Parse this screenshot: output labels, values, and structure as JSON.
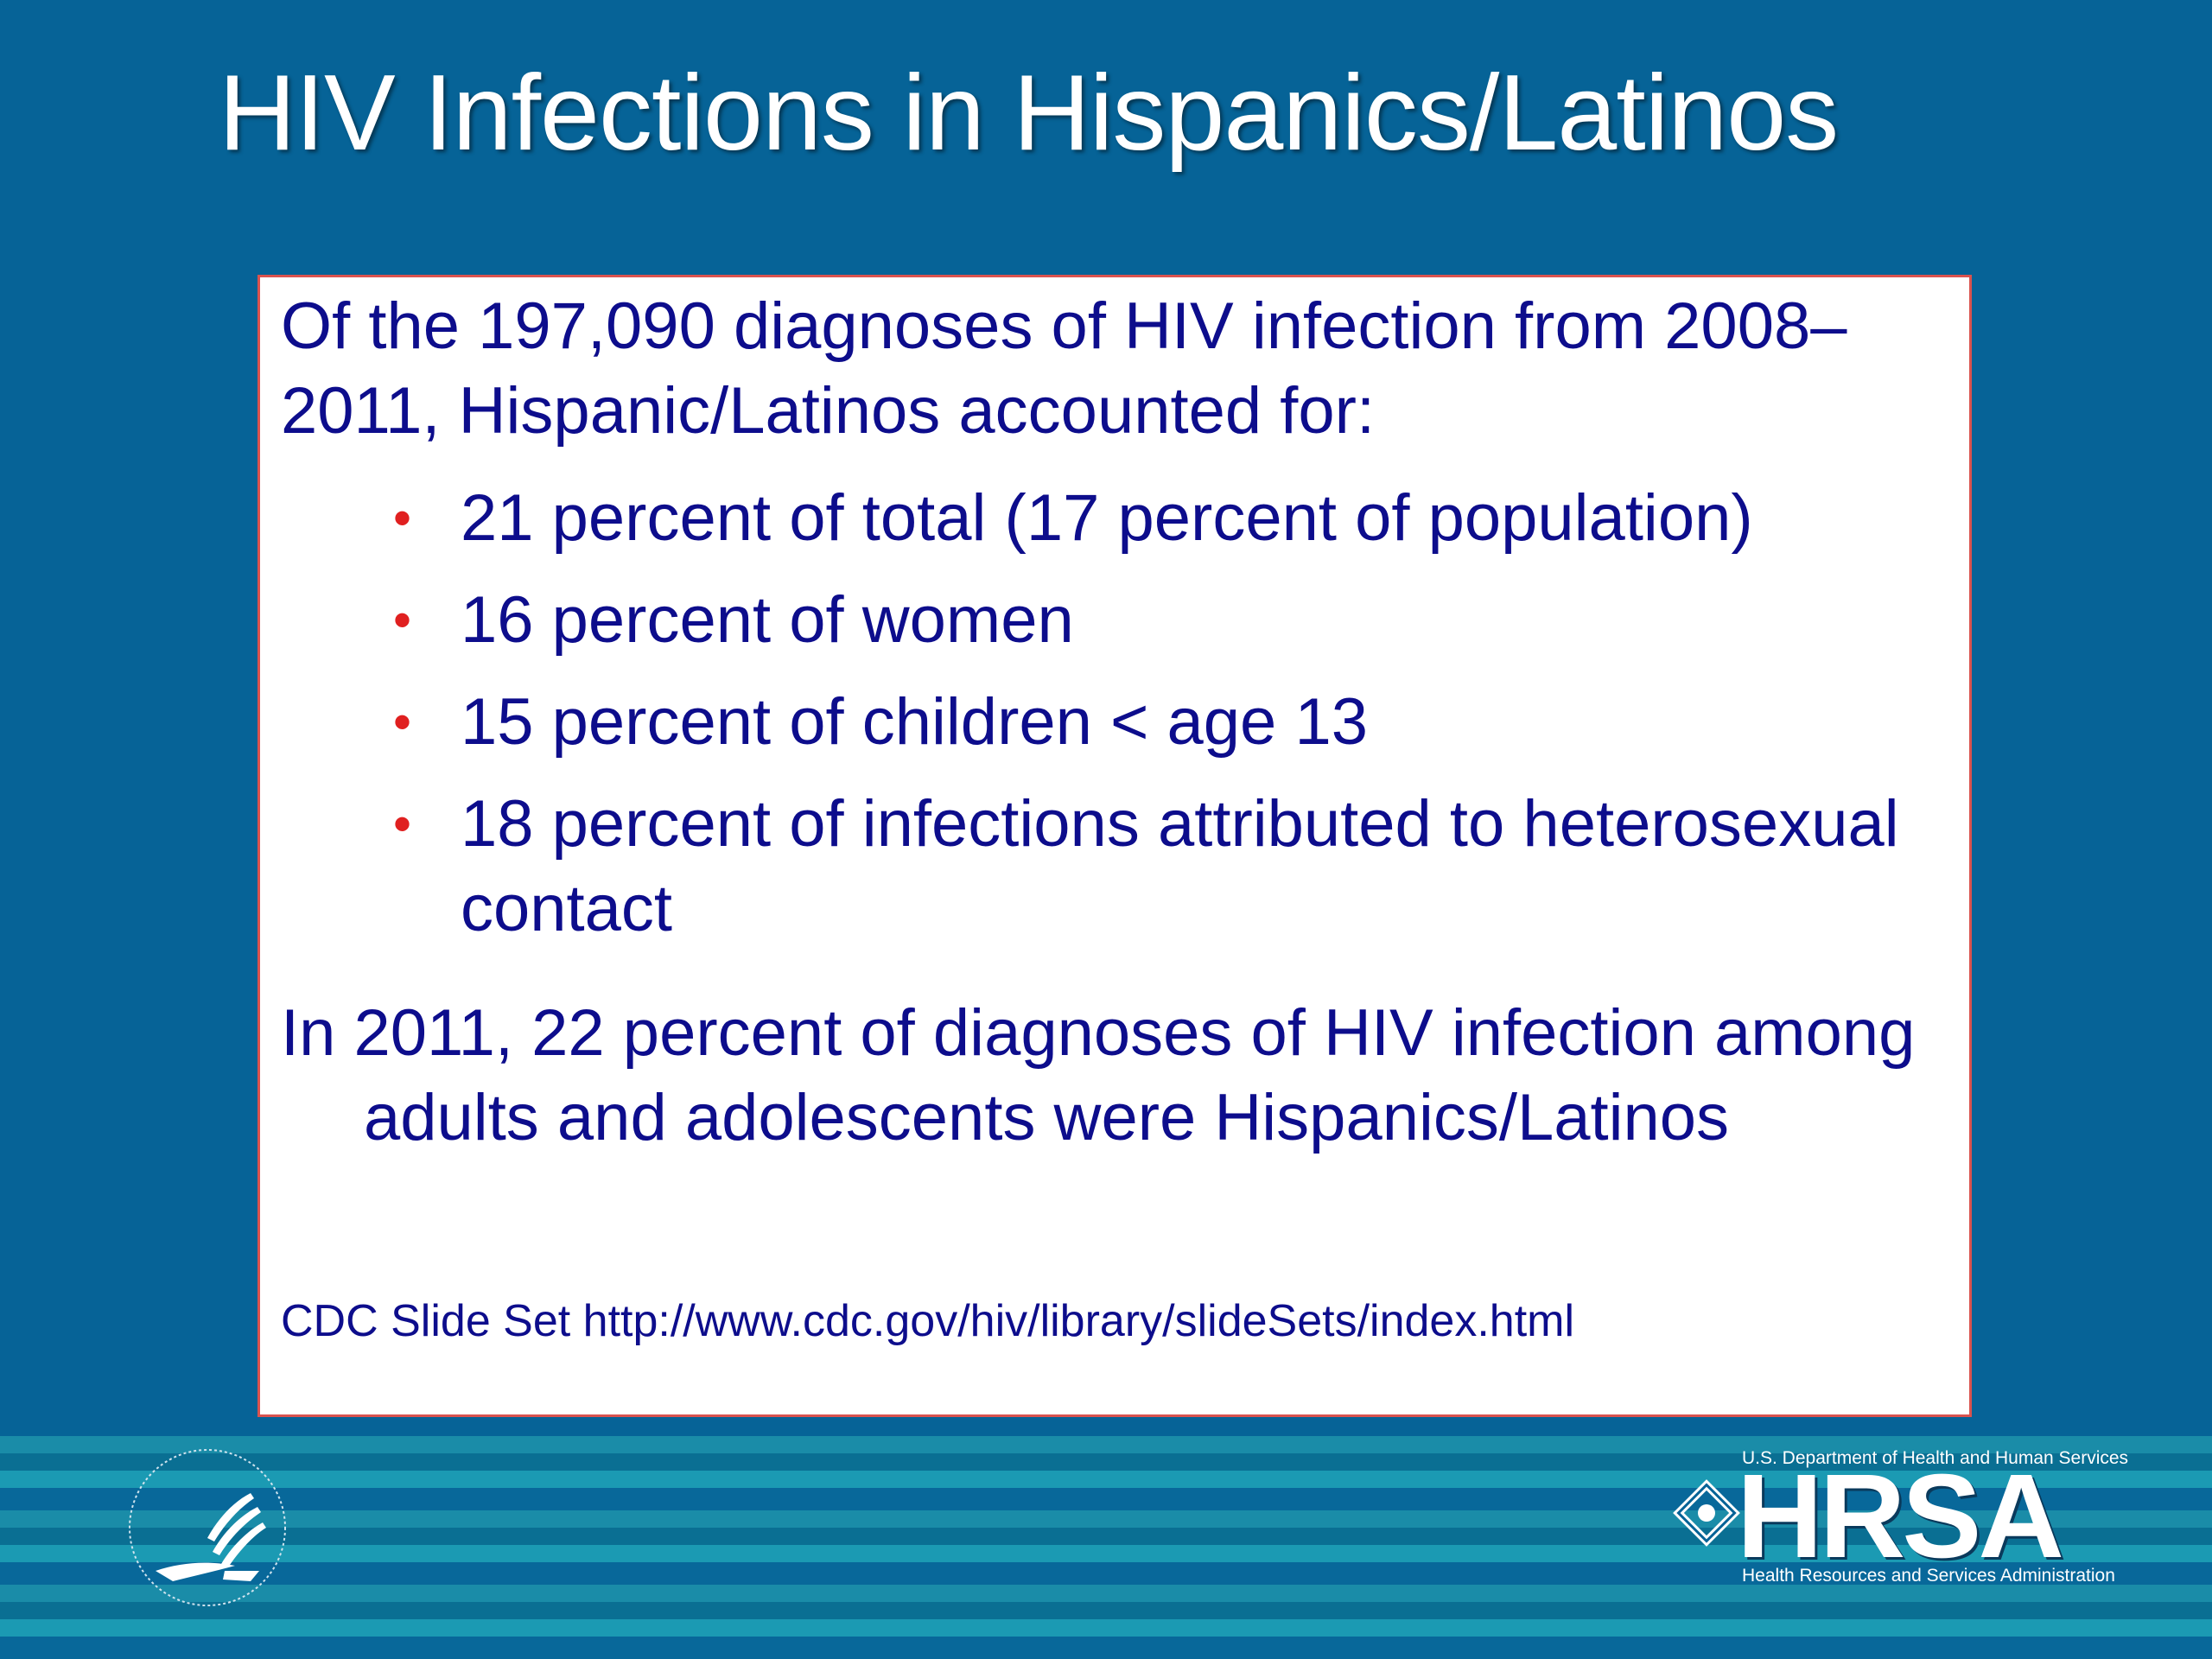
{
  "slide": {
    "title": "HIV Infections in Hispanics/Latinos"
  },
  "content": {
    "intro": "Of  the 197,090 diagnoses of HIV infection from 2008–2011, Hispanic/Latinos accounted for:",
    "bullets": [
      "21 percent of total (17 percent of population)",
      "16 percent of women",
      "15 percent of children < age 13",
      "18 percent of infections attributed to heterosexual contact"
    ],
    "closing": "In 2011, 22 percent of diagnoses of HIV infection among adults and adolescents were Hispanics/Latinos",
    "source": "CDC Slide Set http://www.cdc.gov/hiv/library/slideSets/index.html"
  },
  "footer": {
    "hhs_logo_icon": "hhs-eagle-seal-icon",
    "hrsa_department": "U.S. Department of Health and Human Services",
    "hrsa_name": "HRSA",
    "hrsa_full_name": "Health Resources and Services Administration"
  },
  "colors": {
    "background": "#066397",
    "text": "#0d0d8c",
    "bullet": "#e02020",
    "box_border": "#d9534f"
  }
}
